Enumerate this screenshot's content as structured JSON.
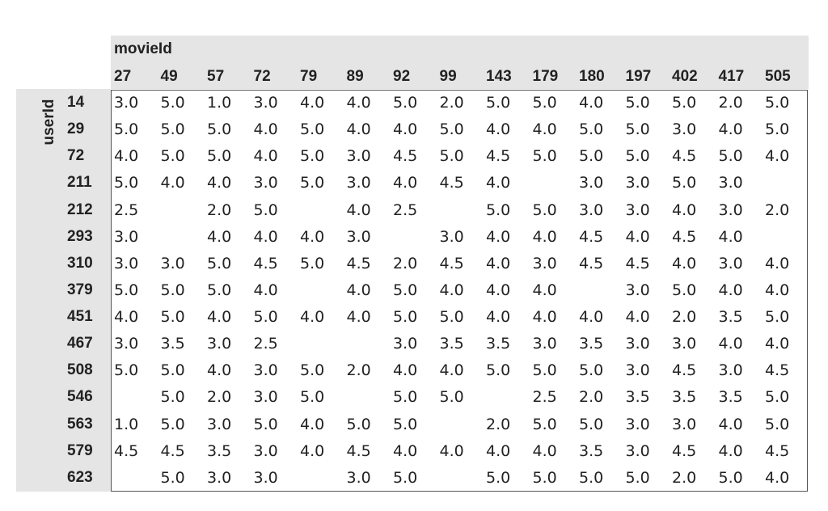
{
  "table": {
    "column_header": "movieId",
    "row_header": "userId",
    "columns": [
      "27",
      "49",
      "57",
      "72",
      "79",
      "89",
      "92",
      "99",
      "143",
      "179",
      "180",
      "197",
      "402",
      "417",
      "505"
    ],
    "rows": [
      {
        "id": "14",
        "cells": [
          "3.0",
          "5.0",
          "1.0",
          "3.0",
          "4.0",
          "4.0",
          "5.0",
          "2.0",
          "5.0",
          "5.0",
          "4.0",
          "5.0",
          "5.0",
          "2.0",
          "5.0"
        ]
      },
      {
        "id": "29",
        "cells": [
          "5.0",
          "5.0",
          "5.0",
          "4.0",
          "5.0",
          "4.0",
          "4.0",
          "5.0",
          "4.0",
          "4.0",
          "5.0",
          "5.0",
          "3.0",
          "4.0",
          "5.0"
        ]
      },
      {
        "id": "72",
        "cells": [
          "4.0",
          "5.0",
          "5.0",
          "4.0",
          "5.0",
          "3.0",
          "4.5",
          "5.0",
          "4.5",
          "5.0",
          "5.0",
          "5.0",
          "4.5",
          "5.0",
          "4.0"
        ]
      },
      {
        "id": "211",
        "cells": [
          "5.0",
          "4.0",
          "4.0",
          "3.0",
          "5.0",
          "3.0",
          "4.0",
          "4.5",
          "4.0",
          null,
          "3.0",
          "3.0",
          "5.0",
          "3.0",
          null
        ]
      },
      {
        "id": "212",
        "cells": [
          "2.5",
          null,
          "2.0",
          "5.0",
          null,
          "4.0",
          "2.5",
          null,
          "5.0",
          "5.0",
          "3.0",
          "3.0",
          "4.0",
          "3.0",
          "2.0"
        ]
      },
      {
        "id": "293",
        "cells": [
          "3.0",
          null,
          "4.0",
          "4.0",
          "4.0",
          "3.0",
          null,
          "3.0",
          "4.0",
          "4.0",
          "4.5",
          "4.0",
          "4.5",
          "4.0",
          null
        ]
      },
      {
        "id": "310",
        "cells": [
          "3.0",
          "3.0",
          "5.0",
          "4.5",
          "5.0",
          "4.5",
          "2.0",
          "4.5",
          "4.0",
          "3.0",
          "4.5",
          "4.5",
          "4.0",
          "3.0",
          "4.0"
        ]
      },
      {
        "id": "379",
        "cells": [
          "5.0",
          "5.0",
          "5.0",
          "4.0",
          null,
          "4.0",
          "5.0",
          "4.0",
          "4.0",
          "4.0",
          null,
          "3.0",
          "5.0",
          "4.0",
          "4.0"
        ]
      },
      {
        "id": "451",
        "cells": [
          "4.0",
          "5.0",
          "4.0",
          "5.0",
          "4.0",
          "4.0",
          "5.0",
          "5.0",
          "4.0",
          "4.0",
          "4.0",
          "4.0",
          "2.0",
          "3.5",
          "5.0"
        ]
      },
      {
        "id": "467",
        "cells": [
          "3.0",
          "3.5",
          "3.0",
          "2.5",
          null,
          null,
          "3.0",
          "3.5",
          "3.5",
          "3.0",
          "3.5",
          "3.0",
          "3.0",
          "4.0",
          "4.0"
        ]
      },
      {
        "id": "508",
        "cells": [
          "5.0",
          "5.0",
          "4.0",
          "3.0",
          "5.0",
          "2.0",
          "4.0",
          "4.0",
          "5.0",
          "5.0",
          "5.0",
          "3.0",
          "4.5",
          "3.0",
          "4.5"
        ]
      },
      {
        "id": "546",
        "cells": [
          null,
          "5.0",
          "2.0",
          "3.0",
          "5.0",
          null,
          "5.0",
          "5.0",
          null,
          "2.5",
          "2.0",
          "3.5",
          "3.5",
          "3.5",
          "5.0"
        ]
      },
      {
        "id": "563",
        "cells": [
          "1.0",
          "5.0",
          "3.0",
          "5.0",
          "4.0",
          "5.0",
          "5.0",
          null,
          "2.0",
          "5.0",
          "5.0",
          "3.0",
          "3.0",
          "4.0",
          "5.0"
        ]
      },
      {
        "id": "579",
        "cells": [
          "4.5",
          "4.5",
          "3.5",
          "3.0",
          "4.0",
          "4.5",
          "4.0",
          "4.0",
          "4.0",
          "4.0",
          "3.5",
          "3.0",
          "4.5",
          "4.0",
          "4.5"
        ]
      },
      {
        "id": "623",
        "cells": [
          null,
          "5.0",
          "3.0",
          "3.0",
          null,
          "3.0",
          "5.0",
          null,
          "5.0",
          "5.0",
          "5.0",
          "5.0",
          "2.0",
          "5.0",
          "4.0"
        ]
      }
    ]
  }
}
